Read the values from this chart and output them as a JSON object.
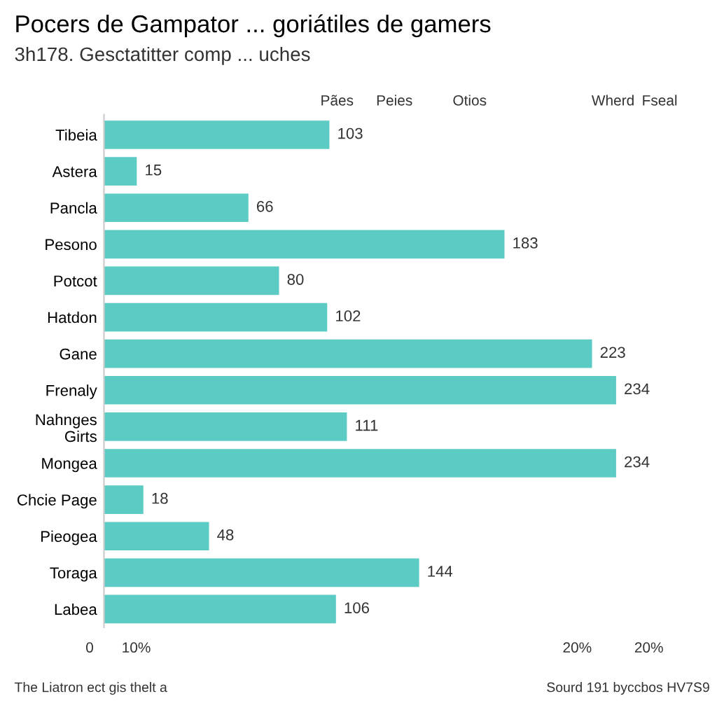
{
  "chart_data": {
    "type": "bar",
    "orientation": "horizontal",
    "data_labels": true,
    "title": "Pocers de Gampator ... goriátiles de gamers",
    "subtitle": "3h178. Gesctatitter comp ... uches",
    "categories": [
      "Tibeia",
      "Astera",
      "Pancla",
      "Pesono",
      "Potcot",
      "Hatdon",
      "Gane",
      "Frenaly",
      "Nahnges\nGirts",
      "Mongea",
      "Chcie Page",
      "Pieogea",
      "Toraga",
      "Labea"
    ],
    "values": [
      103,
      15,
      66,
      183,
      80,
      102,
      223,
      234,
      111,
      234,
      18,
      48,
      144,
      106
    ],
    "color": "#5ccbc3",
    "annotations": [
      "Pães",
      "Peies",
      "Otios",
      "Wherd",
      "Fseal",
      "0",
      "10%",
      "20%",
      "20%",
      "The Liatron ect gis thelt a",
      "Sourd 191 byccbos HV7S9"
    ]
  }
}
